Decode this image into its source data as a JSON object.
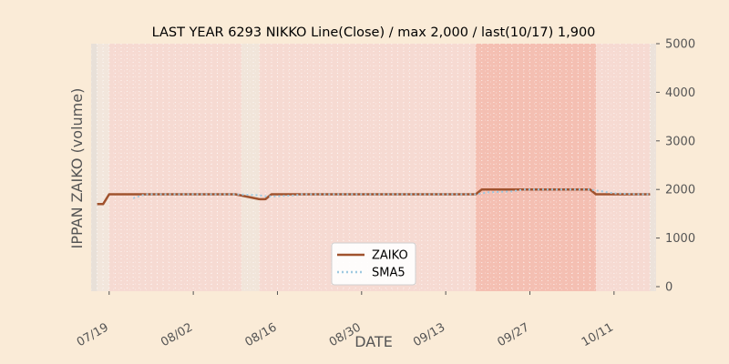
{
  "chart_data": {
    "type": "line",
    "title": "LAST YEAR 6293 NIKKO Line(Close) / max 2,000 / last(10/17) 1,900",
    "xlabel": "DATE",
    "ylabel": "IPPAN ZAIKO (volume)",
    "ylim": [
      0,
      5000
    ],
    "yticks": [
      "0",
      "1000",
      "2000",
      "3000",
      "4000",
      "5000"
    ],
    "xticks": [
      {
        "date": "07/19",
        "label": "07/19"
      },
      {
        "date": "08/02",
        "label": "08/02"
      },
      {
        "date": "08/16",
        "label": "08/16"
      },
      {
        "date": "08/30",
        "label": "08/30"
      },
      {
        "date": "09/13",
        "label": "09/13"
      },
      {
        "date": "09/27",
        "label": "09/27"
      },
      {
        "date": "10/11",
        "label": "10/11"
      }
    ],
    "xlim": [
      "07/16",
      "10/18"
    ],
    "y_axis_side": "right",
    "grid": true,
    "legend_position": "lower-center",
    "series": [
      {
        "name": "ZAIKO",
        "style": "solid",
        "color": "#a0522d",
        "points": [
          [
            "07/17",
            1700
          ],
          [
            "07/18",
            1700
          ],
          [
            "07/19",
            1900
          ],
          [
            "07/22",
            1900
          ],
          [
            "07/23",
            1900
          ],
          [
            "07/24",
            1900
          ],
          [
            "07/25",
            1900
          ],
          [
            "07/26",
            1900
          ],
          [
            "07/29",
            1900
          ],
          [
            "07/30",
            1900
          ],
          [
            "07/31",
            1900
          ],
          [
            "08/01",
            1900
          ],
          [
            "08/02",
            1900
          ],
          [
            "08/05",
            1900
          ],
          [
            "08/06",
            1900
          ],
          [
            "08/07",
            1900
          ],
          [
            "08/08",
            1900
          ],
          [
            "08/09",
            1900
          ],
          [
            "08/13",
            1800
          ],
          [
            "08/14",
            1800
          ],
          [
            "08/15",
            1900
          ],
          [
            "08/16",
            1900
          ],
          [
            "08/19",
            1900
          ],
          [
            "08/20",
            1900
          ],
          [
            "08/21",
            1900
          ],
          [
            "08/22",
            1900
          ],
          [
            "08/23",
            1900
          ],
          [
            "08/26",
            1900
          ],
          [
            "08/27",
            1900
          ],
          [
            "08/28",
            1900
          ],
          [
            "08/29",
            1900
          ],
          [
            "08/30",
            1900
          ],
          [
            "09/02",
            1900
          ],
          [
            "09/03",
            1900
          ],
          [
            "09/04",
            1900
          ],
          [
            "09/05",
            1900
          ],
          [
            "09/06",
            1900
          ],
          [
            "09/09",
            1900
          ],
          [
            "09/10",
            1900
          ],
          [
            "09/11",
            1900
          ],
          [
            "09/12",
            1900
          ],
          [
            "09/13",
            1900
          ],
          [
            "09/17",
            1900
          ],
          [
            "09/18",
            1900
          ],
          [
            "09/19",
            2000
          ],
          [
            "09/20",
            2000
          ],
          [
            "09/24",
            2000
          ],
          [
            "09/25",
            2000
          ],
          [
            "09/26",
            2000
          ],
          [
            "09/27",
            2000
          ],
          [
            "09/30",
            2000
          ],
          [
            "10/01",
            2000
          ],
          [
            "10/02",
            2000
          ],
          [
            "10/03",
            2000
          ],
          [
            "10/04",
            2000
          ],
          [
            "10/07",
            2000
          ],
          [
            "10/08",
            1900
          ],
          [
            "10/09",
            1900
          ],
          [
            "10/10",
            1900
          ],
          [
            "10/11",
            1900
          ],
          [
            "10/15",
            1900
          ],
          [
            "10/16",
            1900
          ],
          [
            "10/17",
            1900
          ]
        ]
      },
      {
        "name": "SMA5",
        "style": "dotted",
        "color": "#9ec9e0",
        "points": [
          [
            "07/23",
            1820
          ],
          [
            "07/24",
            1860
          ],
          [
            "07/25",
            1900
          ],
          [
            "07/26",
            1900
          ],
          [
            "07/29",
            1900
          ],
          [
            "07/30",
            1900
          ],
          [
            "07/31",
            1900
          ],
          [
            "08/01",
            1900
          ],
          [
            "08/02",
            1900
          ],
          [
            "08/05",
            1900
          ],
          [
            "08/06",
            1900
          ],
          [
            "08/07",
            1900
          ],
          [
            "08/08",
            1900
          ],
          [
            "08/09",
            1900
          ],
          [
            "08/13",
            1880
          ],
          [
            "08/14",
            1860
          ],
          [
            "08/15",
            1860
          ],
          [
            "08/16",
            1860
          ],
          [
            "08/19",
            1880
          ],
          [
            "08/20",
            1900
          ],
          [
            "08/21",
            1900
          ],
          [
            "08/22",
            1900
          ],
          [
            "08/23",
            1900
          ],
          [
            "08/26",
            1900
          ],
          [
            "08/27",
            1900
          ],
          [
            "08/28",
            1900
          ],
          [
            "08/29",
            1900
          ],
          [
            "08/30",
            1900
          ],
          [
            "09/02",
            1900
          ],
          [
            "09/03",
            1900
          ],
          [
            "09/04",
            1900
          ],
          [
            "09/05",
            1900
          ],
          [
            "09/06",
            1900
          ],
          [
            "09/09",
            1900
          ],
          [
            "09/10",
            1900
          ],
          [
            "09/11",
            1900
          ],
          [
            "09/12",
            1900
          ],
          [
            "09/13",
            1900
          ],
          [
            "09/17",
            1900
          ],
          [
            "09/18",
            1900
          ],
          [
            "09/19",
            1920
          ],
          [
            "09/20",
            1940
          ],
          [
            "09/24",
            1960
          ],
          [
            "09/25",
            1980
          ],
          [
            "09/26",
            2000
          ],
          [
            "09/27",
            2000
          ],
          [
            "09/30",
            2000
          ],
          [
            "10/01",
            2000
          ],
          [
            "10/02",
            2000
          ],
          [
            "10/03",
            2000
          ],
          [
            "10/04",
            2000
          ],
          [
            "10/07",
            2000
          ],
          [
            "10/08",
            1980
          ],
          [
            "10/09",
            1960
          ],
          [
            "10/10",
            1940
          ],
          [
            "10/11",
            1920
          ],
          [
            "10/15",
            1900
          ],
          [
            "10/16",
            1900
          ],
          [
            "10/17",
            1900
          ]
        ]
      }
    ],
    "shaded_spans": [
      {
        "from": "07/16",
        "to": "07/17",
        "color": "#e8e0d8"
      },
      {
        "from": "07/17",
        "to": "07/19",
        "color": "#f2e6dc"
      },
      {
        "from": "07/19",
        "to": "08/10",
        "color": "#f6dad2"
      },
      {
        "from": "08/10",
        "to": "08/13",
        "color": "#f1e5da"
      },
      {
        "from": "08/13",
        "to": "09/18",
        "color": "#f6dad2"
      },
      {
        "from": "09/18",
        "to": "10/08",
        "color": "#f4bfb2"
      },
      {
        "from": "10/08",
        "to": "10/17",
        "color": "#f6dad2"
      },
      {
        "from": "10/17",
        "to": "10/18",
        "color": "#ece2da"
      }
    ]
  }
}
